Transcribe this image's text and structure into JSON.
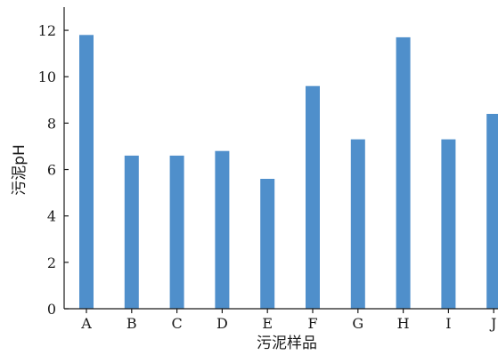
{
  "chart_data": {
    "type": "bar",
    "categories": [
      "A",
      "B",
      "C",
      "D",
      "E",
      "F",
      "G",
      "H",
      "I",
      "J"
    ],
    "values": [
      11.8,
      6.6,
      6.6,
      6.8,
      5.6,
      9.6,
      7.3,
      11.7,
      7.3,
      8.4
    ],
    "xlabel": "污泥样品",
    "ylabel": "污泥pH",
    "ylim": [
      0,
      13
    ],
    "yticks": [
      0,
      2,
      4,
      6,
      8,
      10,
      12
    ],
    "grid": false,
    "legend": "none",
    "bar_color": "#4f8fcb",
    "axis_color": "#1a1a1a"
  }
}
